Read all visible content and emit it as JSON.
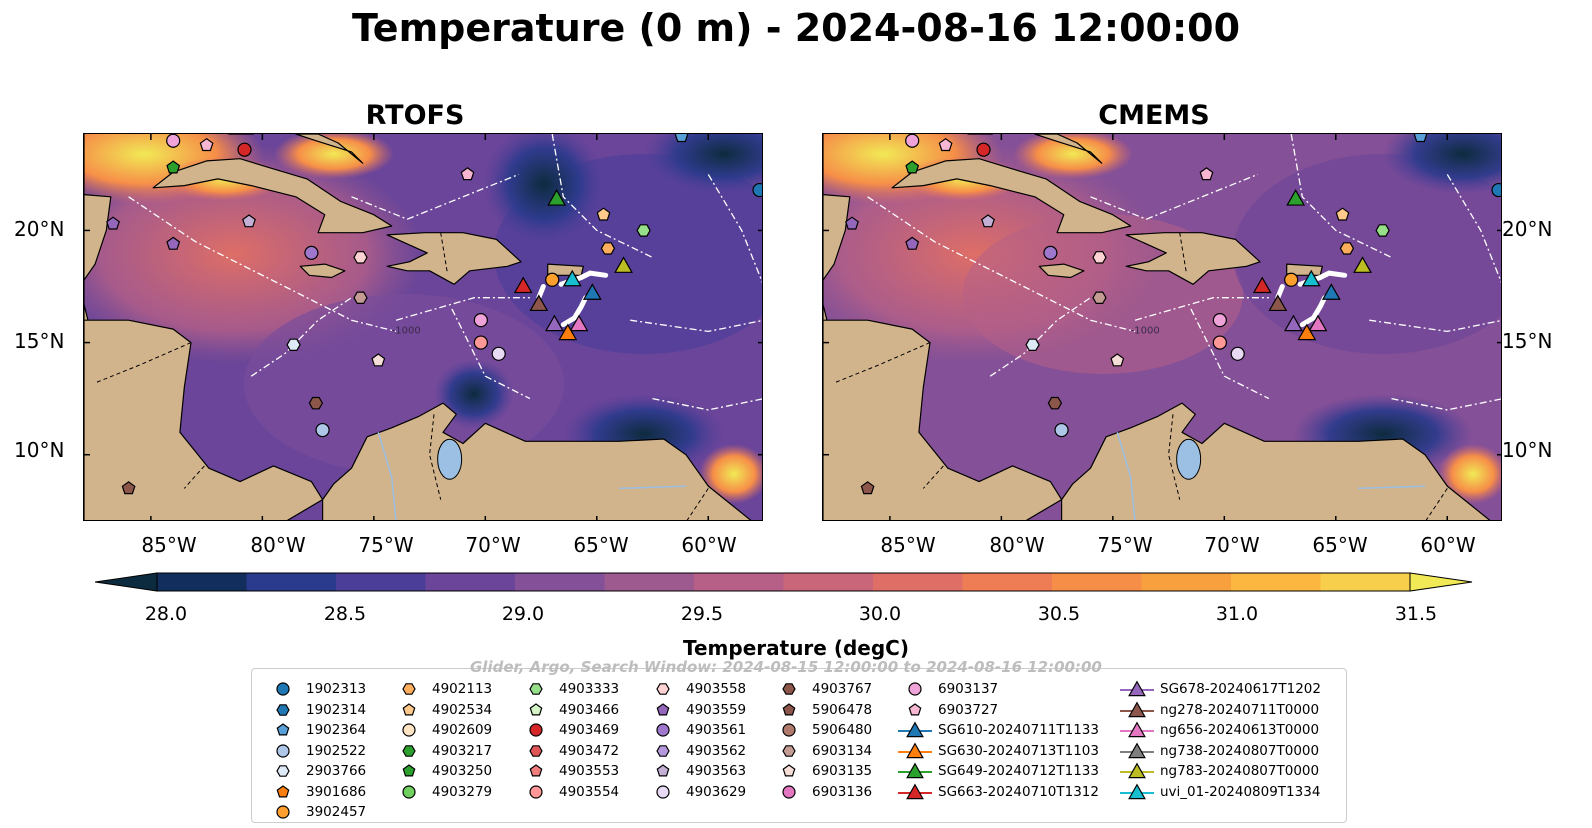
{
  "title": "Temperature (0 m) - 2024-08-16 12:00:00",
  "panels": [
    {
      "title": "RTOFS"
    },
    {
      "title": "CMEMS"
    }
  ],
  "map": {
    "lon_range": [
      -88,
      -57.5
    ],
    "lat_range": [
      7,
      24.3
    ],
    "lat_ticks": [
      "20°N",
      "15°N",
      "10°N"
    ],
    "lon_ticks": [
      "85°W",
      "80°W",
      "75°W",
      "70°W",
      "65°W",
      "60°W"
    ],
    "land_color": "#d2b48c",
    "lake_color": "#9cc0e4",
    "boundary_style": "white dash-dot EEZ lines",
    "bathymetry_label": "-1000"
  },
  "colorbar": {
    "label": "Temperature (degC)",
    "ticks": [
      "28.0",
      "28.5",
      "29.0",
      "29.5",
      "30.0",
      "30.5",
      "31.0",
      "31.5"
    ],
    "min": 28.0,
    "max": 31.5,
    "extend": "both",
    "colors": [
      "#0d2b3e",
      "#112e5d",
      "#2a3a8c",
      "#4b3e99",
      "#6a4599",
      "#845097",
      "#9d5a8e",
      "#b66087",
      "#ca667a",
      "#de6e66",
      "#ee7d55",
      "#f68e48",
      "#f8a03e",
      "#fbb740",
      "#f8cf4c",
      "#f1e955"
    ]
  },
  "watermark": "Glider, Argo, Search Window: 2024-08-15 12:00:00 to 2024-08-16 12:00:00",
  "legend": {
    "columns": [
      [
        {
          "label": "1902313",
          "shape": "circle",
          "color": "#1f77b4"
        },
        {
          "label": "1902314",
          "shape": "hexagon",
          "color": "#1f77b4"
        },
        {
          "label": "1902364",
          "shape": "pentagon",
          "color": "#5aa0d8"
        },
        {
          "label": "1902522",
          "shape": "circle",
          "color": "#aec7e8"
        },
        {
          "label": "2903766",
          "shape": "hexagon",
          "color": "#deebf7"
        },
        {
          "label": "3901686",
          "shape": "pentagon",
          "color": "#ff7f0e"
        },
        {
          "label": "3902457",
          "shape": "circle",
          "color": "#ff9f2e"
        }
      ],
      [
        {
          "label": "4902113",
          "shape": "hexagon",
          "color": "#ffae5e"
        },
        {
          "label": "4902534",
          "shape": "pentagon",
          "color": "#ffc98b"
        },
        {
          "label": "4902609",
          "shape": "circle",
          "color": "#ffe4c4"
        },
        {
          "label": "4903217",
          "shape": "hexagon",
          "color": "#2ca02c"
        },
        {
          "label": "4903250",
          "shape": "pentagon",
          "color": "#2ca02c"
        },
        {
          "label": "4903279",
          "shape": "circle",
          "color": "#6fcf5f"
        }
      ],
      [
        {
          "label": "4903333",
          "shape": "hexagon",
          "color": "#98df8a"
        },
        {
          "label": "4903466",
          "shape": "pentagon",
          "color": "#d5f5c8"
        },
        {
          "label": "4903469",
          "shape": "circle",
          "color": "#d62728"
        },
        {
          "label": "4903472",
          "shape": "hexagon",
          "color": "#e05555"
        },
        {
          "label": "4903553",
          "shape": "pentagon",
          "color": "#f07c7c"
        },
        {
          "label": "4903554",
          "shape": "circle",
          "color": "#ff9896"
        }
      ],
      [
        {
          "label": "4903558",
          "shape": "hexagon",
          "color": "#ffd3d3"
        },
        {
          "label": "4903559",
          "shape": "pentagon",
          "color": "#9467bd"
        },
        {
          "label": "4903561",
          "shape": "circle",
          "color": "#9f77cc"
        },
        {
          "label": "4903562",
          "shape": "hexagon",
          "color": "#b698dc"
        },
        {
          "label": "4903563",
          "shape": "pentagon",
          "color": "#c5b0d5"
        },
        {
          "label": "4903629",
          "shape": "circle",
          "color": "#e8d9f5"
        }
      ],
      [
        {
          "label": "4903767",
          "shape": "hexagon",
          "color": "#8c564b"
        },
        {
          "label": "5906478",
          "shape": "pentagon",
          "color": "#8c564b"
        },
        {
          "label": "5906480",
          "shape": "circle",
          "color": "#b07a6e"
        },
        {
          "label": "6903134",
          "shape": "hexagon",
          "color": "#c49c94"
        },
        {
          "label": "6903135",
          "shape": "pentagon",
          "color": "#f5ddd8"
        },
        {
          "label": "6903136",
          "shape": "circle",
          "color": "#e377c2"
        }
      ],
      [
        {
          "label": "6903137",
          "shape": "circle",
          "color": "#f0a3d8"
        },
        {
          "label": "6903727",
          "shape": "pentagon",
          "color": "#f7b6d2"
        },
        {
          "label": "SG610-20240711T1133",
          "shape": "triangle-line",
          "color": "#1f77b4"
        },
        {
          "label": "SG630-20240713T1103",
          "shape": "triangle-line",
          "color": "#ff7f0e"
        },
        {
          "label": "SG649-20240712T1133",
          "shape": "triangle-line",
          "color": "#2ca02c"
        },
        {
          "label": "SG663-20240710T1312",
          "shape": "triangle-line",
          "color": "#d62728"
        }
      ],
      [
        {
          "label": "SG678-20240617T1202",
          "shape": "triangle-line",
          "color": "#9467bd"
        },
        {
          "label": "ng278-20240711T0000",
          "shape": "triangle-line",
          "color": "#8c564b"
        },
        {
          "label": "ng656-20240613T0000",
          "shape": "triangle-line",
          "color": "#e377c2"
        },
        {
          "label": "ng738-20240807T0000",
          "shape": "triangle-line",
          "color": "#7f7f7f"
        },
        {
          "label": "ng783-20240807T0000",
          "shape": "triangle-line",
          "color": "#bcbd22"
        },
        {
          "label": "uvi_01-20240809T1334",
          "shape": "triangle-line",
          "color": "#17becf"
        }
      ]
    ]
  },
  "markers": [
    {
      "id": "6903137",
      "lon": -84.0,
      "lat": 24.0,
      "shape": "circle",
      "color": "#f0a3d8"
    },
    {
      "id": "6903727",
      "lon": -82.5,
      "lat": 23.8,
      "shape": "pentagon",
      "color": "#f7b6d2"
    },
    {
      "id": "4903469",
      "lon": -80.8,
      "lat": 23.6,
      "shape": "circle",
      "color": "#d62728"
    },
    {
      "id": "4903250",
      "lon": -84.0,
      "lat": 22.8,
      "shape": "pentagon",
      "color": "#2ca02c"
    },
    {
      "id": "4903559",
      "lon": -86.7,
      "lat": 20.3,
      "shape": "pentagon",
      "color": "#9467bd"
    },
    {
      "id": "4903563",
      "lon": -80.6,
      "lat": 20.4,
      "shape": "pentagon",
      "color": "#c5b0d5"
    },
    {
      "id": "4903559b",
      "lon": -84.0,
      "lat": 19.4,
      "shape": "pentagon",
      "color": "#9467bd"
    },
    {
      "id": "4903561",
      "lon": -77.8,
      "lat": 19.0,
      "shape": "circle",
      "color": "#9f77cc"
    },
    {
      "id": "6903135",
      "lon": -70.8,
      "lat": 22.5,
      "shape": "pentagon",
      "color": "#f7b6d2"
    },
    {
      "id": "SG649-20240712T1133",
      "lon": -66.8,
      "lat": 21.4,
      "shape": "triangle",
      "color": "#2ca02c"
    },
    {
      "id": "4902534",
      "lon": -64.7,
      "lat": 20.7,
      "shape": "pentagon",
      "color": "#ffc98b"
    },
    {
      "id": "4903333",
      "lon": -62.9,
      "lat": 20.0,
      "shape": "hexagon",
      "color": "#98df8a"
    },
    {
      "id": "4902113",
      "lon": -64.5,
      "lat": 19.2,
      "shape": "hexagon",
      "color": "#ffae5e"
    },
    {
      "id": "4903558",
      "lon": -75.6,
      "lat": 18.8,
      "shape": "hexagon",
      "color": "#ffd3d3"
    },
    {
      "id": "6903134",
      "lon": -75.6,
      "lat": 17.0,
      "shape": "hexagon",
      "color": "#c49c94"
    },
    {
      "id": "ng783-20240807T0000",
      "lon": -63.8,
      "lat": 18.4,
      "shape": "triangle",
      "color": "#bcbd22"
    },
    {
      "id": "3902457",
      "lon": -67.0,
      "lat": 17.8,
      "shape": "circle",
      "color": "#ff9f2e"
    },
    {
      "id": "uvi_01-20240809T1334",
      "lon": -66.1,
      "lat": 17.8,
      "shape": "triangle",
      "color": "#17becf"
    },
    {
      "id": "SG663-20240710T1312",
      "lon": -68.3,
      "lat": 17.5,
      "shape": "triangle",
      "color": "#d62728"
    },
    {
      "id": "SG610-20240711T1133",
      "lon": -65.2,
      "lat": 17.2,
      "shape": "triangle",
      "color": "#1f77b4"
    },
    {
      "id": "ng278-20240711T0000",
      "lon": -67.6,
      "lat": 16.7,
      "shape": "triangle",
      "color": "#8c564b"
    },
    {
      "id": "SG678-20240617T1202",
      "lon": -66.9,
      "lat": 15.8,
      "shape": "triangle",
      "color": "#9467bd"
    },
    {
      "id": "ng656-20240613T0000",
      "lon": -65.8,
      "lat": 15.8,
      "shape": "triangle",
      "color": "#e377c2"
    },
    {
      "id": "SG630-20240713T1103",
      "lon": -66.3,
      "lat": 15.4,
      "shape": "triangle",
      "color": "#ff7f0e"
    },
    {
      "id": "6903136b",
      "lon": -70.2,
      "lat": 16.0,
      "shape": "circle",
      "color": "#f0a3d8"
    },
    {
      "id": "4903629",
      "lon": -69.4,
      "lat": 14.5,
      "shape": "circle",
      "color": "#e8d9f5"
    },
    {
      "id": "4903554",
      "lon": -70.2,
      "lat": 15.0,
      "shape": "circle",
      "color": "#ff9896"
    },
    {
      "id": "2903766",
      "lon": -78.6,
      "lat": 14.9,
      "shape": "hexagon",
      "color": "#deebf7"
    },
    {
      "id": "6903135b",
      "lon": -74.8,
      "lat": 14.2,
      "shape": "pentagon",
      "color": "#f5ddd8"
    },
    {
      "id": "4903767",
      "lon": -77.6,
      "lat": 12.3,
      "shape": "hexagon",
      "color": "#8c564b"
    },
    {
      "id": "1902522",
      "lon": -77.3,
      "lat": 11.1,
      "shape": "circle",
      "color": "#aec7e8"
    },
    {
      "id": "5906478",
      "lon": -86.0,
      "lat": 8.5,
      "shape": "pentagon",
      "color": "#8c564b"
    },
    {
      "id": "1902364",
      "lon": -61.2,
      "lat": 24.2,
      "shape": "pentagon",
      "color": "#5aa0d8"
    },
    {
      "id": "1902313",
      "lon": -57.7,
      "lat": 21.8,
      "shape": "circle",
      "color": "#1f77b4"
    }
  ],
  "glider_tracks": [
    {
      "points": [
        [
          -66.6,
          17.6
        ],
        [
          -65.7,
          17.9
        ],
        [
          -65.3,
          18.1
        ],
        [
          -64.6,
          18.0
        ]
      ]
    },
    {
      "points": [
        [
          -66.5,
          15.8
        ],
        [
          -66.0,
          16.1
        ],
        [
          -65.7,
          16.6
        ],
        [
          -65.5,
          17.0
        ]
      ]
    },
    {
      "points": [
        [
          -67.4,
          17.5
        ],
        [
          -67.6,
          17.0
        ]
      ]
    }
  ]
}
